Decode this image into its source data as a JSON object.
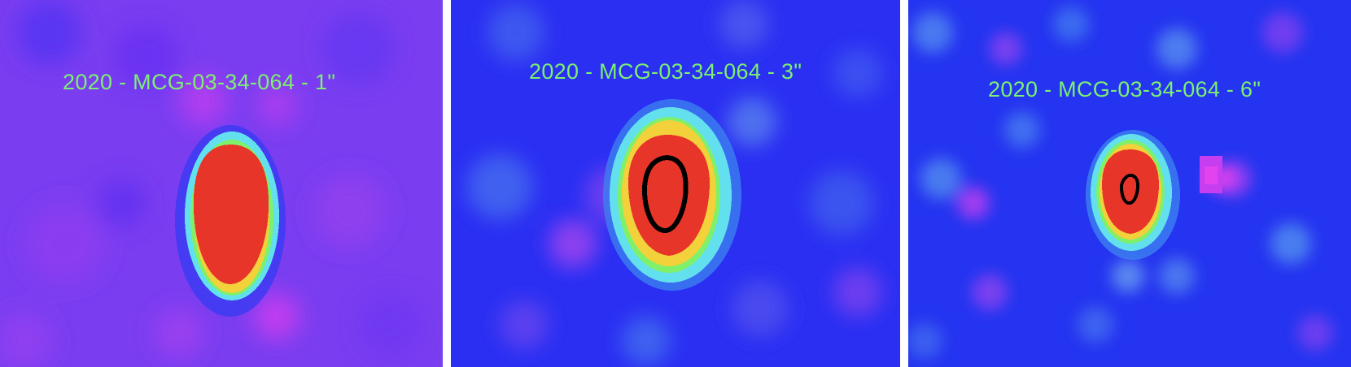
{
  "panels": [
    {
      "id": "p1",
      "title": "2020 - MCG-03-34-064 - 1\"",
      "background": "#7b3cf0"
    },
    {
      "id": "p2",
      "title": "2020 - MCG-03-34-064 - 3\"",
      "background": "#2a2ff2"
    },
    {
      "id": "p3",
      "title": "2020 - MCG-03-34-064 - 6\"",
      "background": "#2636f0"
    }
  ],
  "colors": {
    "label": "#7cf070",
    "source_core": "#e8352a",
    "ring_yellow": "#f3d13a",
    "ring_green": "#7ff06a",
    "ring_cyan": "#62e0ee",
    "contour": "#000000"
  }
}
